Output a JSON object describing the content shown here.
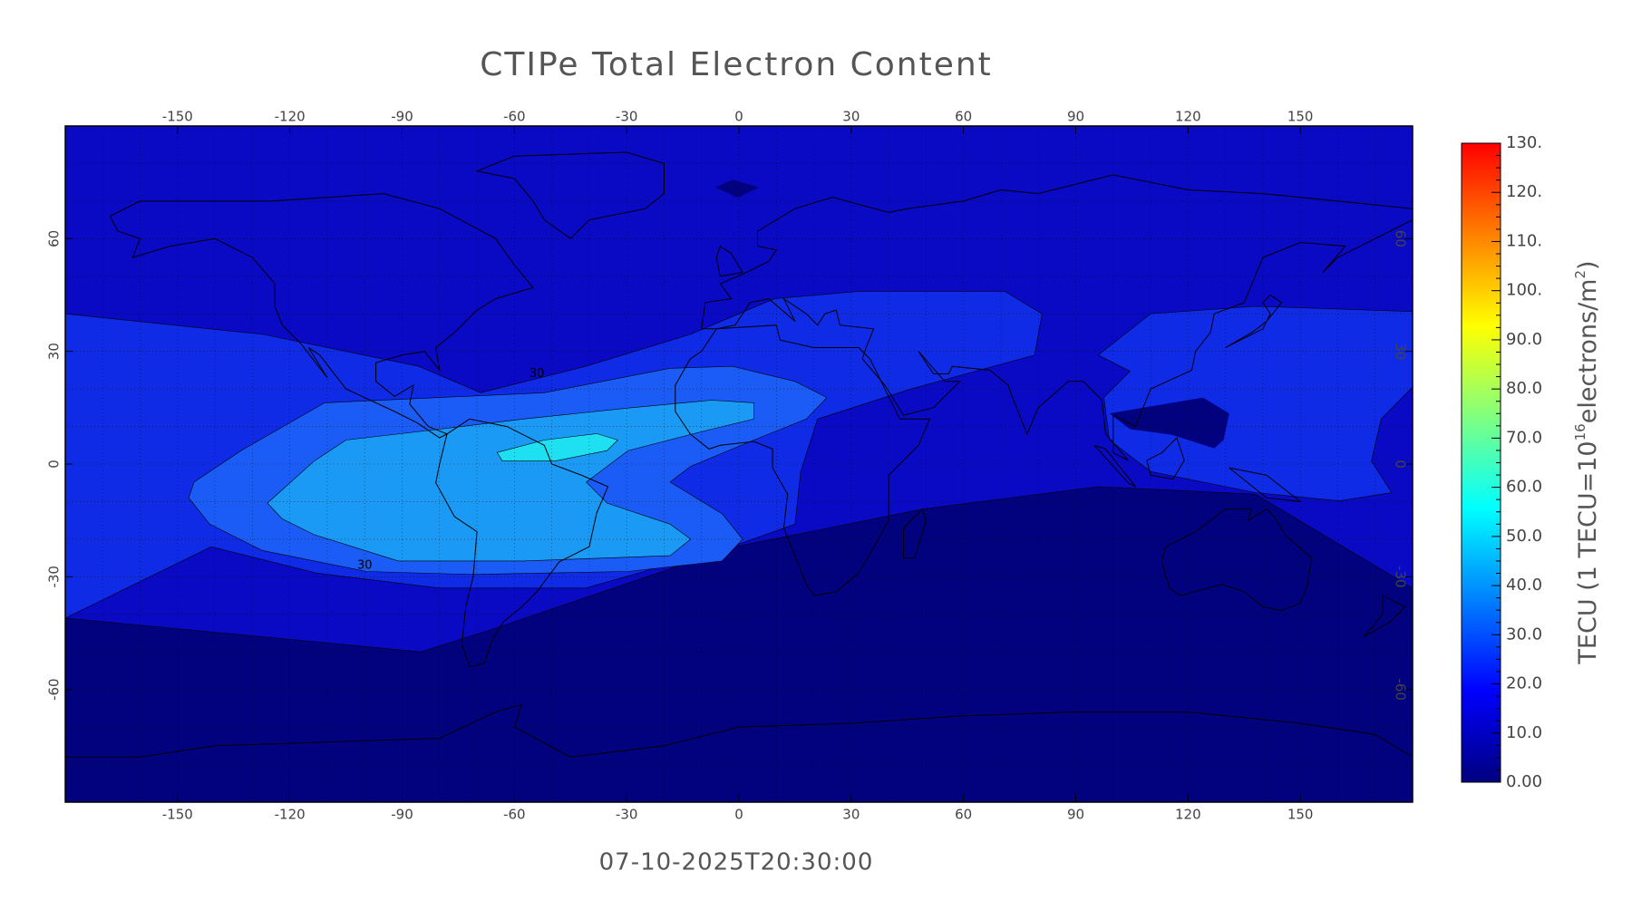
{
  "map": {
    "title": "CTIPe Total Electron Content",
    "timestamp": "07-10-2025T20:30:00",
    "xlim": [
      -180,
      180
    ],
    "ylim": [
      -90,
      90
    ],
    "xticks": [
      -150,
      -120,
      -90,
      -60,
      -30,
      0,
      30,
      60,
      90,
      120,
      150
    ],
    "yticks": [
      -60,
      -30,
      0,
      30,
      60
    ],
    "regions": [
      {
        "level": 0,
        "color": "#02027f",
        "polygon": [
          [
            -180,
            90
          ],
          [
            180,
            90
          ],
          [
            180,
            -90
          ],
          [
            -180,
            -90
          ]
        ]
      },
      {
        "level": 10,
        "color": "#0a0ac4",
        "polygon": [
          [
            -180,
            90
          ],
          [
            180,
            90
          ],
          [
            180,
            -33
          ],
          [
            138,
            -8
          ],
          [
            96,
            -6
          ],
          [
            49,
            -12
          ],
          [
            -1,
            -22
          ],
          [
            -66,
            -44
          ],
          [
            -85,
            -50
          ],
          [
            -180,
            -41
          ]
        ]
      },
      {
        "level": 20,
        "color": "#0f2be6",
        "polygon": [
          [
            -180,
            40
          ],
          [
            -127,
            34.5
          ],
          [
            -85.5,
            26
          ],
          [
            -69,
            19
          ],
          [
            -41,
            26
          ],
          [
            -13,
            34.5
          ],
          [
            9.5,
            44
          ],
          [
            32,
            46
          ],
          [
            71,
            46
          ],
          [
            81,
            40
          ],
          [
            79,
            29
          ],
          [
            46,
            20
          ],
          [
            21,
            12
          ],
          [
            16.5,
            -2
          ],
          [
            15,
            -16
          ],
          [
            -2,
            -22
          ],
          [
            -41,
            -33
          ],
          [
            -80,
            -33
          ],
          [
            -113,
            -29
          ],
          [
            -141,
            -22
          ],
          [
            -180,
            -41
          ]
        ]
      },
      {
        "level": 20,
        "color": "#0f2be6",
        "polygon": [
          [
            96,
            29
          ],
          [
            110,
            40
          ],
          [
            138,
            42
          ],
          [
            180,
            40.6
          ],
          [
            180,
            20.5
          ],
          [
            171.6,
            12
          ],
          [
            169,
            0.8
          ],
          [
            174.4,
            -7.6
          ],
          [
            160.4,
            -9.8
          ],
          [
            138,
            -7.6
          ],
          [
            110,
            -2
          ],
          [
            99,
            6.4
          ],
          [
            97.5,
            17.7
          ],
          [
            104.5,
            24.7
          ]
        ]
      },
      {
        "level": 0,
        "color": "#02027f",
        "polygon": [
          [
            99,
            13.5
          ],
          [
            124,
            17.7
          ],
          [
            131,
            13.5
          ],
          [
            129.5,
            6.4
          ],
          [
            127,
            4.2
          ],
          [
            115.7,
            7.8
          ],
          [
            104.5,
            9.3
          ]
        ]
      },
      {
        "level": 0,
        "color": "#02027f",
        "polygon": [
          [
            -6.4,
            73.7
          ],
          [
            -1.7,
            75.7
          ],
          [
            5.3,
            73.7
          ],
          [
            -0.3,
            70.9
          ]
        ]
      },
      {
        "level": 30,
        "color": "#1a5cf5",
        "polygon": [
          [
            -145.6,
            -4.8
          ],
          [
            -133,
            3.6
          ],
          [
            -110.7,
            16.3
          ],
          [
            -80,
            17.7
          ],
          [
            -52,
            19
          ],
          [
            -18.4,
            25.5
          ],
          [
            -1.7,
            26
          ],
          [
            15,
            22
          ],
          [
            23.5,
            17.7
          ],
          [
            18,
            12
          ],
          [
            4,
            6.4
          ],
          [
            -12.9,
            -0.6
          ],
          [
            -18.4,
            -4.8
          ],
          [
            -4.5,
            -13.2
          ],
          [
            1,
            -20
          ],
          [
            -4.5,
            -25.8
          ],
          [
            -29.6,
            -28.6
          ],
          [
            -71.5,
            -29.4
          ],
          [
            -99.5,
            -28.6
          ],
          [
            -127.4,
            -23
          ],
          [
            -141.4,
            -16
          ],
          [
            -147,
            -9
          ]
        ]
      },
      {
        "level": 40,
        "color": "#1a9af5",
        "polygon": [
          [
            -126,
            -10.4
          ],
          [
            -113.5,
            0.8
          ],
          [
            -105,
            6.4
          ],
          [
            -80,
            9.3
          ],
          [
            -57.6,
            12
          ],
          [
            -29.6,
            14.9
          ],
          [
            -7.3,
            17
          ],
          [
            4,
            16.3
          ],
          [
            4,
            12
          ],
          [
            -7.3,
            9.3
          ],
          [
            -29.6,
            3.6
          ],
          [
            -40.8,
            -4.8
          ],
          [
            -35.2,
            -10.4
          ],
          [
            -18.4,
            -16
          ],
          [
            -12.9,
            -20
          ],
          [
            -18.4,
            -24.4
          ],
          [
            -57.6,
            -25.8
          ],
          [
            -91,
            -25.8
          ],
          [
            -113.5,
            -18.8
          ],
          [
            -122,
            -14.6
          ]
        ]
      },
      {
        "level": 50,
        "color": "#1ee0f0",
        "polygon": [
          [
            -64.6,
            3.1
          ],
          [
            -52,
            6.4
          ],
          [
            -38,
            8.1
          ],
          [
            -32.4,
            6.4
          ],
          [
            -35.2,
            3.6
          ],
          [
            -49.2,
            0.8
          ],
          [
            -63.2,
            0.8
          ]
        ]
      }
    ],
    "contour_labels": [
      30,
      30
    ],
    "colorbar": {
      "lim": [
        0,
        130
      ],
      "ticks": [
        {
          "value": 0,
          "label": "0.00"
        },
        {
          "value": 10,
          "label": "10.0"
        },
        {
          "value": 20,
          "label": "20.0"
        },
        {
          "value": 30,
          "label": "30.0"
        },
        {
          "value": 40,
          "label": "40.0"
        },
        {
          "value": 50,
          "label": "50.0"
        },
        {
          "value": 60,
          "label": "60.0"
        },
        {
          "value": 70,
          "label": "70.0"
        },
        {
          "value": 80,
          "label": "80.0"
        },
        {
          "value": 90,
          "label": "90.0"
        },
        {
          "value": 100,
          "label": "100."
        },
        {
          "value": 110,
          "label": "110."
        },
        {
          "value": 120,
          "label": "120."
        },
        {
          "value": 130,
          "label": "130."
        }
      ],
      "colors": [
        "#00007f",
        "#0000ff",
        "#0080ff",
        "#00ffff",
        "#80ff80",
        "#ffff00",
        "#ff8000",
        "#ff0000"
      ],
      "label": [
        "TECU (1 TECU=10",
        "16",
        "electrons/m",
        "2",
        ")"
      ]
    }
  }
}
